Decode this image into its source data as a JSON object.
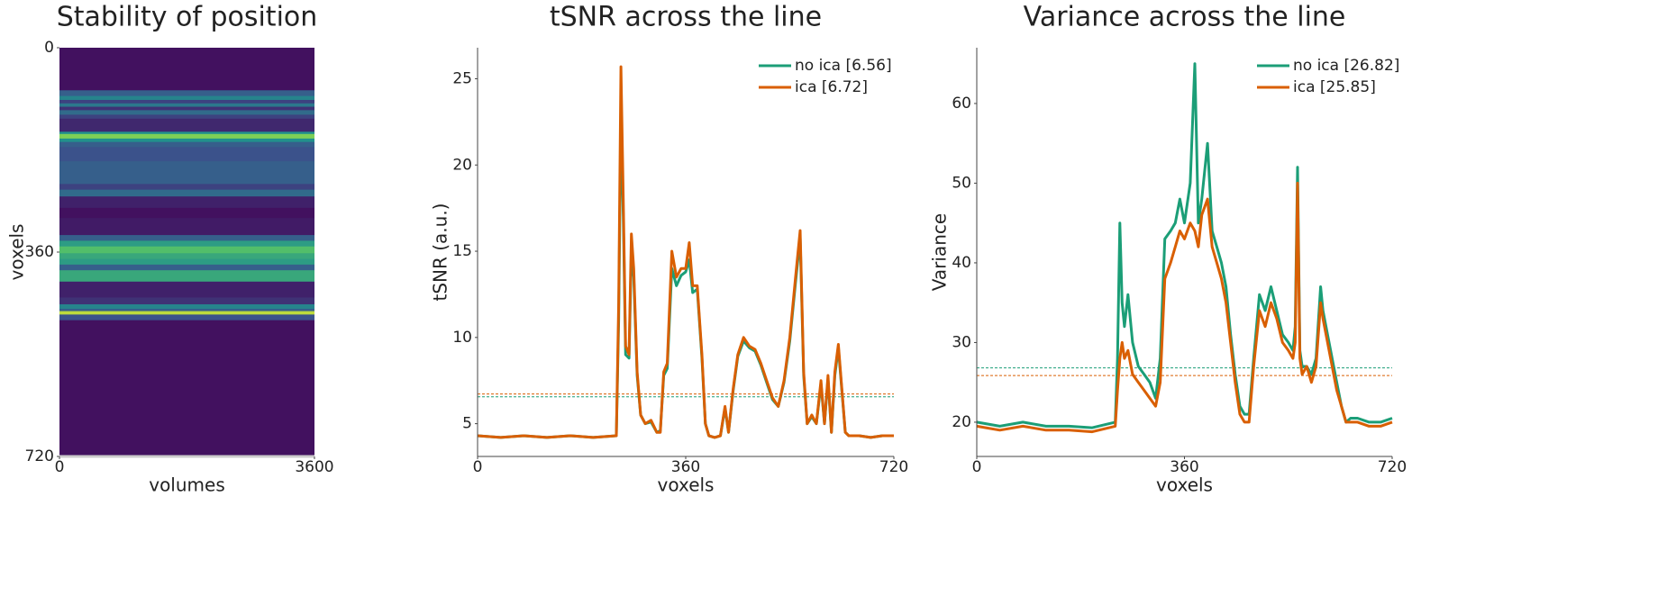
{
  "chart_data": [
    {
      "type": "heatmap",
      "title": "Stability of position",
      "xlabel": "volumes",
      "ylabel": "voxels",
      "colormap": "viridis",
      "y_inverted": true,
      "xlim": [
        0,
        3600
      ],
      "xticks": [
        0,
        3600
      ],
      "ylim": [
        0,
        720
      ],
      "yticks": [
        0,
        360,
        720
      ],
      "ybins": [
        0,
        75,
        85,
        92,
        98,
        104,
        110,
        118,
        125,
        148,
        152,
        160,
        166,
        175,
        200,
        240,
        250,
        262,
        282,
        300,
        330,
        340,
        350,
        362,
        372,
        382,
        392,
        412,
        440,
        452,
        460,
        464,
        470,
        480,
        720
      ],
      "values": [
        0.05,
        0.3,
        0.45,
        0.2,
        0.4,
        0.15,
        0.35,
        0.2,
        0.12,
        0.5,
        0.8,
        0.5,
        0.3,
        0.25,
        0.3,
        0.2,
        0.35,
        0.1,
        0.05,
        0.08,
        0.3,
        0.55,
        0.7,
        0.6,
        0.55,
        0.3,
        0.6,
        0.1,
        0.15,
        0.45,
        0.3,
        0.9,
        0.25,
        0.05
      ]
    },
    {
      "type": "line",
      "title": "tSNR across the line",
      "xlabel": "voxels",
      "ylabel": "tSNR (a.u.)",
      "xlim": [
        0,
        720
      ],
      "xticks": [
        0,
        360,
        720
      ],
      "ylim": [
        3.1,
        26.8
      ],
      "yticks": [
        5,
        10,
        15,
        20,
        25
      ],
      "legend": "upper right",
      "x": [
        0,
        40,
        80,
        120,
        160,
        200,
        240,
        244,
        248,
        252,
        256,
        262,
        266,
        270,
        276,
        282,
        290,
        300,
        310,
        316,
        322,
        328,
        336,
        344,
        352,
        360,
        366,
        372,
        380,
        388,
        394,
        400,
        410,
        420,
        428,
        434,
        442,
        450,
        460,
        470,
        480,
        490,
        500,
        510,
        520,
        530,
        540,
        550,
        558,
        564,
        570,
        578,
        586,
        594,
        600,
        606,
        612,
        618,
        624,
        630,
        636,
        642,
        660,
        680,
        700,
        720
      ],
      "series": [
        {
          "name": "no ica [6.56]",
          "color": "#1b9e77",
          "mean": 6.56,
          "values": [
            4.3,
            4.2,
            4.3,
            4.2,
            4.3,
            4.2,
            4.3,
            11,
            23,
            17,
            9,
            8.8,
            15,
            13.5,
            7.8,
            5.5,
            5,
            5.1,
            4.5,
            4.6,
            7.8,
            8.2,
            14,
            13,
            13.6,
            13.8,
            14.5,
            12.6,
            12.8,
            8.8,
            5,
            4.3,
            4.2,
            4.3,
            5.9,
            4.5,
            6.9,
            8.9,
            9.8,
            9.4,
            9.2,
            8.4,
            7.4,
            6.4,
            6,
            7.4,
            9.8,
            13.2,
            15.8,
            7.8,
            5,
            5.4,
            5,
            7.3,
            5,
            7.6,
            4.5,
            7.8,
            9.4,
            6.9,
            4.5,
            4.3,
            4.3,
            4.2,
            4.3,
            4.3
          ]
        },
        {
          "name": "ica [6.72]",
          "color": "#d95f02",
          "mean": 6.72,
          "values": [
            4.3,
            4.2,
            4.3,
            4.2,
            4.3,
            4.2,
            4.3,
            12,
            25.7,
            18,
            9.5,
            9,
            16,
            14,
            8,
            5.5,
            5,
            5.2,
            4.5,
            4.5,
            8,
            8.5,
            15,
            13.5,
            14,
            14,
            15.5,
            13,
            13,
            9,
            5,
            4.3,
            4.2,
            4.3,
            6,
            4.5,
            7,
            9,
            10,
            9.5,
            9.3,
            8.5,
            7.5,
            6.5,
            6,
            7.5,
            10,
            13.5,
            16.2,
            8,
            5,
            5.5,
            5,
            7.5,
            5,
            7.8,
            4.5,
            8,
            9.6,
            7,
            4.5,
            4.3,
            4.3,
            4.2,
            4.3,
            4.3
          ]
        }
      ]
    },
    {
      "type": "line",
      "title": "Variance across the line",
      "xlabel": "voxels",
      "ylabel": "Variance",
      "xlim": [
        0,
        720
      ],
      "xticks": [
        0,
        360,
        720
      ],
      "ylim": [
        15.7,
        67
      ],
      "yticks": [
        20,
        30,
        40,
        50,
        60
      ],
      "legend": "upper right",
      "x": [
        0,
        40,
        80,
        120,
        160,
        200,
        240,
        244,
        248,
        252,
        256,
        262,
        270,
        280,
        290,
        300,
        310,
        318,
        326,
        336,
        344,
        352,
        360,
        370,
        378,
        384,
        390,
        400,
        408,
        416,
        424,
        432,
        440,
        448,
        456,
        464,
        472,
        480,
        490,
        500,
        510,
        520,
        530,
        540,
        548,
        552,
        556,
        560,
        564,
        572,
        580,
        588,
        596,
        600,
        608,
        616,
        624,
        632,
        640,
        648,
        660,
        680,
        700,
        720
      ],
      "series": [
        {
          "name": "no ica [26.82]",
          "color": "#1b9e77",
          "mean": 26.82,
          "values": [
            20,
            19.5,
            20,
            19.5,
            19.5,
            19.3,
            20,
            28,
            45,
            35,
            32,
            36,
            30,
            27,
            26,
            25,
            23,
            28,
            43,
            44,
            45,
            48,
            45,
            50,
            65,
            45,
            48,
            55,
            44,
            42,
            40,
            37,
            31,
            26,
            22,
            21,
            21,
            28,
            36,
            34,
            37,
            34,
            31,
            30,
            29,
            32,
            52,
            29,
            27,
            27,
            26,
            28,
            37,
            34,
            31,
            28,
            25,
            22,
            20,
            20.5,
            20.5,
            20,
            20,
            20.5
          ]
        },
        {
          "name": "ica [25.85]",
          "color": "#d95f02",
          "mean": 25.85,
          "values": [
            19.5,
            19,
            19.5,
            19,
            19,
            18.8,
            19.5,
            24,
            28,
            30,
            28,
            29,
            26,
            25,
            24,
            23,
            22,
            25,
            38,
            40,
            42,
            44,
            43,
            45,
            44,
            42,
            46,
            48,
            42,
            40,
            38,
            35,
            30,
            25,
            21,
            20,
            20,
            27,
            34,
            32,
            35,
            33,
            30,
            29,
            28,
            30,
            50,
            28,
            26,
            27,
            25,
            27,
            35,
            33,
            30,
            27,
            24,
            22,
            20,
            20,
            20,
            19.5,
            19.5,
            20
          ]
        }
      ]
    }
  ]
}
